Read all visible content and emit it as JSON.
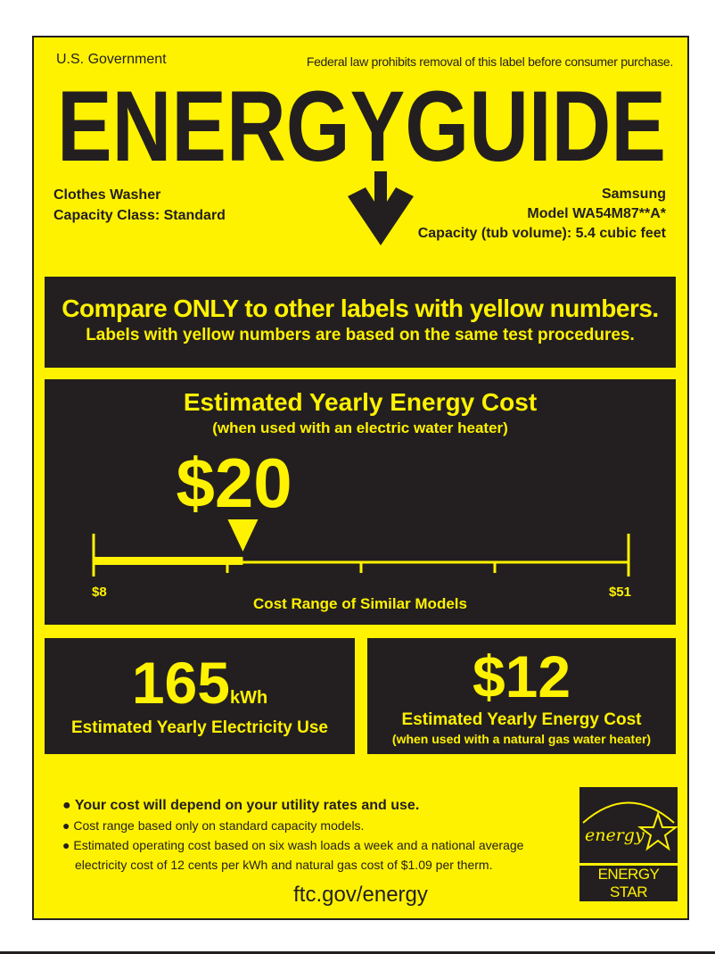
{
  "header": {
    "government": "U.S. Government",
    "notice": "Federal law prohibits removal of this label before consumer purchase.",
    "title": "ENERGYGUIDE"
  },
  "product": {
    "type": "Clothes Washer",
    "capacity_class": "Capacity Class: Standard",
    "brand": "Samsung",
    "model": "Model WA54M87**A*",
    "capacity": "Capacity (tub volume): 5.4 cubic feet"
  },
  "compare": {
    "line1": "Compare ONLY to other labels with yellow numbers.",
    "line2": "Labels with yellow numbers are based on the same test procedures."
  },
  "cost": {
    "title": "Estimated Yearly Energy Cost",
    "subtitle": "(when used with an electric water heater)",
    "value_label": "$20",
    "value": 20,
    "range_min_label": "$8",
    "range_max_label": "$51",
    "range_min": 8,
    "range_max": 51,
    "range_caption": "Cost Range of Similar Models"
  },
  "electricity": {
    "value": "165",
    "unit": "kWh",
    "caption": "Estimated Yearly Electricity Use"
  },
  "gas": {
    "value": "$12",
    "caption": "Estimated Yearly Energy Cost",
    "subcaption": "(when used with a natural gas water heater)"
  },
  "notes": [
    "Your cost will depend on your utility rates and use.",
    "Cost range based only on standard capacity models.",
    "Estimated operating cost based on six wash loads a week and a national average",
    "electricity cost of 12 cents per kWh and natural gas cost of $1.09 per therm."
  ],
  "footer": {
    "url": "ftc.gov/energy"
  },
  "energy_star": {
    "logo_script": "energy",
    "label": "ENERGY STAR"
  },
  "colors": {
    "yellow": "#fff200",
    "dark": "#231f20"
  }
}
